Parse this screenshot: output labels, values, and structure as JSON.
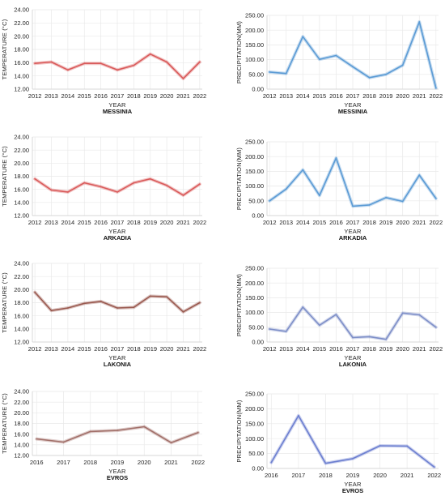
{
  "chart_data": [
    {
      "type": "line",
      "title": "MESSINIA",
      "xlabel": "YEAR",
      "ylabel": "TEMPERATURE (°C)",
      "x": [
        2012,
        2013,
        2014,
        2015,
        2016,
        2017,
        2018,
        2019,
        2020,
        2021,
        2022
      ],
      "values": [
        15.9,
        16.1,
        14.9,
        15.9,
        15.9,
        14.9,
        15.6,
        17.3,
        16.1,
        13.6,
        16.1
      ],
      "ylim": [
        12,
        24
      ],
      "yticks": [
        "12.00",
        "14.00",
        "16.00",
        "18.00",
        "20.00",
        "22.00",
        "24.00"
      ],
      "color": "#d95a5a",
      "grid": true
    },
    {
      "type": "line",
      "title": "MESSINIA",
      "xlabel": "YEAR",
      "ylabel": "PRECIPITATION(MM)",
      "x": [
        2012,
        2013,
        2014,
        2015,
        2016,
        2017,
        2018,
        2019,
        2020,
        2021,
        2022
      ],
      "values": [
        58,
        53,
        178,
        101,
        114,
        76,
        39,
        50,
        81,
        228,
        4
      ],
      "ylim": [
        0,
        250
      ],
      "yticks": [
        "0.00",
        "50.00",
        "100.00",
        "150.00",
        "200.00",
        "250.00"
      ],
      "color": "#5b9bd5",
      "grid": true
    },
    {
      "type": "line",
      "title": "ARKADIA",
      "xlabel": "YEAR",
      "ylabel": "TEMPERATURE (°C)",
      "x": [
        2012,
        2013,
        2014,
        2015,
        2016,
        2017,
        2018,
        2019,
        2020,
        2021,
        2022
      ],
      "values": [
        17.6,
        15.9,
        15.6,
        17.0,
        16.4,
        15.6,
        17.0,
        17.6,
        16.6,
        15.1,
        16.8
      ],
      "ylim": [
        12,
        24
      ],
      "yticks": [
        "12.00",
        "14.00",
        "16.00",
        "18.00",
        "20.00",
        "22.00",
        "24.00"
      ],
      "color": "#d95a5a",
      "grid": true
    },
    {
      "type": "line",
      "title": "ARKADIA",
      "xlabel": "YEAR",
      "ylabel": "PRECIPITATION(MM)",
      "x": [
        2012,
        2013,
        2014,
        2015,
        2016,
        2017,
        2018,
        2019,
        2020,
        2021,
        2022
      ],
      "values": [
        50,
        90,
        155,
        68,
        195,
        32,
        36,
        61,
        48,
        137,
        58
      ],
      "ylim": [
        0,
        250
      ],
      "yticks": [
        "0.00",
        "50.00",
        "100.00",
        "150.00",
        "200.00",
        "250.00"
      ],
      "color": "#5b9bd5",
      "grid": true
    },
    {
      "type": "line",
      "title": "LAKONIA",
      "xlabel": "YEAR",
      "ylabel": "TEMPERATURE (°C)",
      "x": [
        2012,
        2013,
        2014,
        2015,
        2016,
        2017,
        2018,
        2019,
        2020,
        2021,
        2022
      ],
      "values": [
        19.6,
        16.8,
        17.2,
        17.9,
        18.2,
        17.2,
        17.3,
        19.0,
        18.9,
        16.6,
        18.0
      ],
      "ylim": [
        12,
        24
      ],
      "yticks": [
        "12.00",
        "14.00",
        "16.00",
        "18.00",
        "20.00",
        "22.00",
        "24.00"
      ],
      "color": "#9a5a50",
      "grid": true
    },
    {
      "type": "line",
      "title": "LAKONIA",
      "xlabel": "YEAR",
      "ylabel": "PRECIPITATION(MM)",
      "x": [
        2012,
        2013,
        2014,
        2015,
        2016,
        2017,
        2018,
        2019,
        2020,
        2021,
        2022
      ],
      "values": [
        44,
        36,
        118,
        57,
        93,
        15,
        18,
        9,
        98,
        92,
        50
      ],
      "ylim": [
        0,
        250
      ],
      "yticks": [
        "0.00",
        "50.00",
        "100.00",
        "150.00",
        "200.00",
        "250.00"
      ],
      "color": "#7e8fc8",
      "grid": true
    },
    {
      "type": "line",
      "title": "EVROS",
      "xlabel": "YEAR",
      "ylabel": "TEMPERATURE (°C)",
      "x": [
        2016,
        2017,
        2018,
        2019,
        2020,
        2021,
        2022
      ],
      "values": [
        15.1,
        14.5,
        16.5,
        16.7,
        17.4,
        14.4,
        16.3
      ],
      "ylim": [
        12,
        24
      ],
      "yticks": [
        "12.00",
        "14.00",
        "16.00",
        "18.00",
        "20.00",
        "22.00",
        "24.00"
      ],
      "color": "#a2706a",
      "grid": true
    },
    {
      "type": "line",
      "title": "EVROS",
      "xlabel": "YEAR",
      "ylabel": "PRECIPITATION(MM)",
      "x": [
        2016,
        2017,
        2018,
        2019,
        2020,
        2021,
        2022
      ],
      "values": [
        20,
        177,
        17,
        33,
        76,
        75,
        5
      ],
      "ylim": [
        0,
        250
      ],
      "yticks": [
        "0.00",
        "50.00",
        "100.00",
        "150.00",
        "200.00",
        "250.00"
      ],
      "color": "#6c7fd0",
      "grid": true
    }
  ]
}
